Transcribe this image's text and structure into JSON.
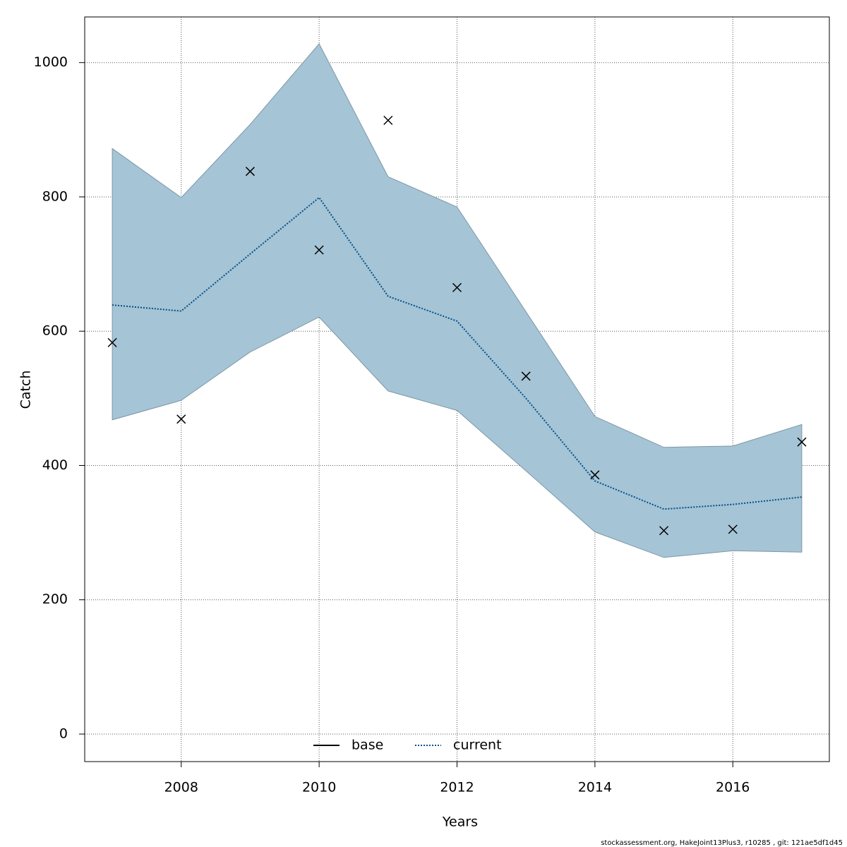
{
  "chart_data": {
    "type": "line",
    "xlabel": "Years",
    "ylabel": "Catch",
    "x": [
      2007,
      2008,
      2009,
      2010,
      2011,
      2012,
      2013,
      2014,
      2015,
      2016,
      2017
    ],
    "series": [
      {
        "name": "base",
        "color": "#000000",
        "linestyle": "solid"
      },
      {
        "name": "current",
        "color": "#00508c",
        "linestyle": "dotted",
        "values": [
          639,
          630,
          715,
          799,
          652,
          615,
          500,
          377,
          335,
          342,
          353
        ]
      }
    ],
    "band": {
      "color": "#a5c4d5",
      "edge": "#7d97a6",
      "upper": [
        872,
        799,
        908,
        1028,
        830,
        785,
        629,
        473,
        427,
        429,
        461
      ],
      "lower": [
        468,
        497,
        569,
        621,
        511,
        482,
        392,
        301,
        263,
        273,
        271
      ]
    },
    "observed": {
      "color": "#000000",
      "values": [
        583,
        469,
        838,
        721,
        914,
        665,
        533,
        386,
        303,
        305,
        435
      ]
    },
    "xlim": [
      2006.6,
      2017.4
    ],
    "ylim": [
      -41,
      1068
    ],
    "xticks": [
      2008,
      2010,
      2012,
      2014,
      2016
    ],
    "yticks": [
      0,
      200,
      400,
      600,
      800,
      1000
    ],
    "grid": true,
    "legend": "bottom",
    "footer": "stockassessment.org, HakeJoint13Plus3, r10285 , git: 121ae5df1d45"
  }
}
